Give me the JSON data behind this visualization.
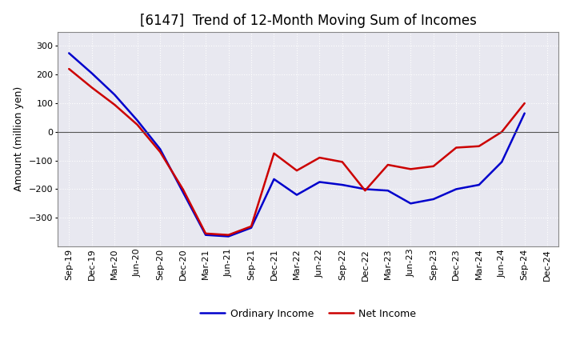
{
  "title": "[6147]  Trend of 12-Month Moving Sum of Incomes",
  "ylabel": "Amount (million yen)",
  "x_labels": [
    "Sep-19",
    "Dec-19",
    "Mar-20",
    "Jun-20",
    "Sep-20",
    "Dec-20",
    "Mar-21",
    "Jun-21",
    "Sep-21",
    "Dec-21",
    "Mar-22",
    "Jun-22",
    "Sep-22",
    "Dec-22",
    "Mar-23",
    "Jun-23",
    "Sep-23",
    "Dec-23",
    "Mar-24",
    "Jun-24",
    "Sep-24",
    "Dec-24"
  ],
  "ordinary_income": [
    275,
    205,
    130,
    40,
    -60,
    -210,
    -360,
    -365,
    -335,
    -165,
    -220,
    -175,
    -185,
    -200,
    -205,
    -250,
    -235,
    -200,
    -185,
    -105,
    65,
    null
  ],
  "net_income": [
    220,
    155,
    95,
    25,
    -70,
    -200,
    -355,
    -360,
    -330,
    -75,
    -135,
    -90,
    -105,
    -205,
    -115,
    -130,
    -120,
    -55,
    -50,
    0,
    100,
    null
  ],
  "ordinary_income_color": "#0000cc",
  "net_income_color": "#cc0000",
  "ylim": [
    -400,
    350
  ],
  "yticks": [
    -300,
    -200,
    -100,
    0,
    100,
    200,
    300
  ],
  "plot_bg_color": "#e8e8f0",
  "fig_bg_color": "#ffffff",
  "grid_color": "#ffffff",
  "linewidth": 1.8,
  "title_fontsize": 12,
  "ylabel_fontsize": 9,
  "tick_fontsize": 8,
  "legend_fontsize": 9
}
